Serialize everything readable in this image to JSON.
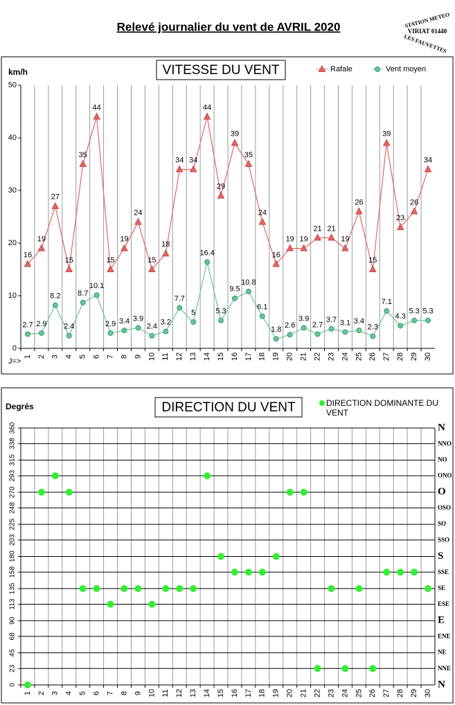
{
  "title": "Relevé journalier du vent de AVRIL 2020",
  "stamp": {
    "top": "STATION METEO",
    "middle": "VIRIAT 01440",
    "bottom": "LES FAUVETTES"
  },
  "chart_data": [
    {
      "type": "line",
      "title": "VITESSE DU VENT",
      "ylabel": "km/h",
      "xlabel": "J=>",
      "categories": [
        "1",
        "2",
        "3",
        "4",
        "5",
        "6",
        "7",
        "8",
        "9",
        "10",
        "11",
        "12",
        "13",
        "14",
        "15",
        "16",
        "17",
        "18",
        "19",
        "20",
        "21",
        "22",
        "23",
        "24",
        "25",
        "26",
        "27",
        "28",
        "29",
        "30"
      ],
      "series": [
        {
          "name": "Rafale",
          "color": "#e06666",
          "marker": "triangle",
          "values": [
            16,
            19,
            27,
            15,
            35,
            44,
            15,
            19,
            24,
            15,
            18,
            34,
            34,
            44,
            29,
            39,
            35,
            24,
            16,
            19,
            19,
            21,
            21,
            19,
            26,
            15,
            39,
            23,
            26,
            34
          ]
        },
        {
          "name": "Vent moyen",
          "color": "#66c796",
          "marker": "circle",
          "values": [
            2.7,
            2.9,
            8.2,
            2.4,
            8.7,
            10.1,
            2.9,
            3.4,
            3.9,
            2.4,
            3.2,
            7.7,
            5,
            16.4,
            5.3,
            9.5,
            10.8,
            6.1,
            1.8,
            2.6,
            3.9,
            2.7,
            3.7,
            3.1,
            3.4,
            2.3,
            7.1,
            4.3,
            5.3,
            5.3
          ]
        }
      ],
      "ylim": [
        0,
        50
      ],
      "yticks": [
        0,
        10,
        20,
        30,
        40,
        50
      ],
      "xgrid": true,
      "ygrid": false,
      "legend": "top-right"
    },
    {
      "type": "scatter",
      "title": "DIRECTION DU VENT",
      "ylabel": "Degrés",
      "categories": [
        "1",
        "2",
        "3",
        "4",
        "5",
        "6",
        "7",
        "8",
        "9",
        "10",
        "11",
        "12",
        "13",
        "14",
        "15",
        "16",
        "17",
        "18",
        "19",
        "20",
        "21",
        "22",
        "23",
        "24",
        "25",
        "26",
        "27",
        "28",
        "29",
        "30"
      ],
      "series": [
        {
          "name": "DIRECTION DOMINANTE DU VENT",
          "color": "#33ee33",
          "values": [
            0,
            270,
            293,
            270,
            135,
            135,
            113,
            135,
            135,
            113,
            135,
            135,
            135,
            293,
            180,
            158,
            158,
            158,
            180,
            270,
            270,
            23,
            135,
            23,
            135,
            23,
            158,
            158,
            158,
            135
          ]
        }
      ],
      "ylim": [
        0,
        360
      ],
      "yticks": [
        0,
        23,
        45,
        68,
        90,
        113,
        135,
        158,
        180,
        203,
        225,
        248,
        270,
        293,
        315,
        338,
        360
      ],
      "y2lim": [
        0,
        360
      ],
      "y2ticks": [
        {
          "value": 0,
          "label": "N"
        },
        {
          "value": 22.5,
          "label": "NNE"
        },
        {
          "value": 45,
          "label": "NE"
        },
        {
          "value": 67.5,
          "label": "ENE"
        },
        {
          "value": 90,
          "label": "E"
        },
        {
          "value": 112.5,
          "label": "ESE"
        },
        {
          "value": 135,
          "label": "SE"
        },
        {
          "value": 157.5,
          "label": "SSE"
        },
        {
          "value": 180,
          "label": "S"
        },
        {
          "value": 202.5,
          "label": "SSO"
        },
        {
          "value": 225,
          "label": "SO"
        },
        {
          "value": 247.5,
          "label": "OSO"
        },
        {
          "value": 270,
          "label": "O"
        },
        {
          "value": 292.5,
          "label": "ONO"
        },
        {
          "value": 315,
          "label": "NO"
        },
        {
          "value": 337.5,
          "label": "NNO"
        },
        {
          "value": 360,
          "label": "N"
        }
      ],
      "xgrid": true,
      "ygrid": true,
      "legend": "top-right"
    }
  ]
}
